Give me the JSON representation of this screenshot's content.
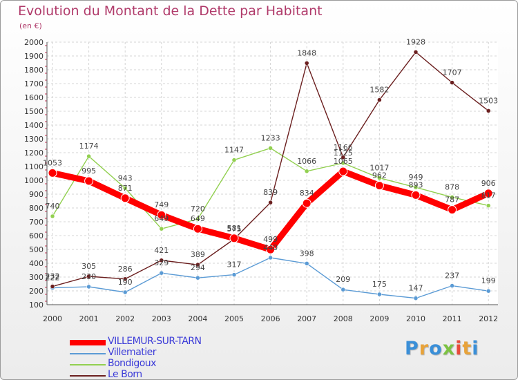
{
  "chart_data": {
    "type": "line",
    "title": "Evolution du Montant de la Dette par Habitant",
    "subtitle": "(en €)",
    "x": [
      "2000",
      "2001",
      "2002",
      "2003",
      "2004",
      "2005",
      "2006",
      "2007",
      "2008",
      "2009",
      "2010",
      "2011",
      "2012"
    ],
    "yticks": [
      100,
      200,
      300,
      400,
      500,
      600,
      700,
      800,
      900,
      1000,
      1100,
      1200,
      1300,
      1400,
      1500,
      1600,
      1700,
      1800,
      1900,
      2000
    ],
    "ylim": [
      100,
      2000
    ],
    "grid": true,
    "legend_position": "bottom-left",
    "series": [
      {
        "name": "VILLEMUR-SUR-TARN",
        "color": "#ff0000",
        "values": [
          1053,
          995,
          871,
          749,
          649,
          581,
          499,
          834,
          1065,
          962,
          893,
          787,
          906
        ],
        "labels": [
          "1053",
          "995",
          "871",
          "749",
          "649",
          "581",
          "499",
          "834",
          "1065",
          "962",
          "893",
          "787",
          "906"
        ]
      },
      {
        "name": "Villematier",
        "color": "#5b9bd5",
        "values": [
          222,
          230,
          190,
          329,
          294,
          317,
          440,
          398,
          209,
          175,
          147,
          237,
          199
        ],
        "labels": [
          "222",
          "230",
          "190",
          "329",
          "294",
          "317",
          "440",
          "398",
          "209",
          "175",
          "147",
          "237",
          "199"
        ]
      },
      {
        "name": "Bondigoux",
        "color": "#92d050",
        "values": [
          740,
          1174,
          943,
          649,
          720,
          1147,
          1233,
          1066,
          1125,
          1017,
          949,
          878,
          817
        ],
        "labels": [
          "740",
          "1174",
          "943",
          "649",
          "720",
          "1147",
          "1233",
          "1066",
          "1125",
          "1017",
          "949",
          "878",
          "817"
        ]
      },
      {
        "name": "Le Born",
        "color": "#6b1f1f",
        "values": [
          232,
          305,
          286,
          421,
          389,
          575,
          839,
          1848,
          1166,
          1582,
          1928,
          1707,
          1503
        ],
        "labels": [
          "232",
          "305",
          "286",
          "421",
          "389",
          "575",
          "839",
          "1848",
          "1166",
          "1582",
          "1928",
          "1707",
          "1503"
        ]
      }
    ]
  },
  "brand": {
    "letters": [
      {
        "ch": "P",
        "color": "#3a8fd8"
      },
      {
        "ch": "r",
        "color": "#e8a33a"
      },
      {
        "ch": "o",
        "color": "#3a8fd8"
      },
      {
        "ch": "x",
        "color": "#7cc242"
      },
      {
        "ch": "i",
        "color": "#e84a3a"
      },
      {
        "ch": "t",
        "color": "#e8a33a"
      },
      {
        "ch": "i",
        "color": "#3a8fd8"
      }
    ]
  }
}
